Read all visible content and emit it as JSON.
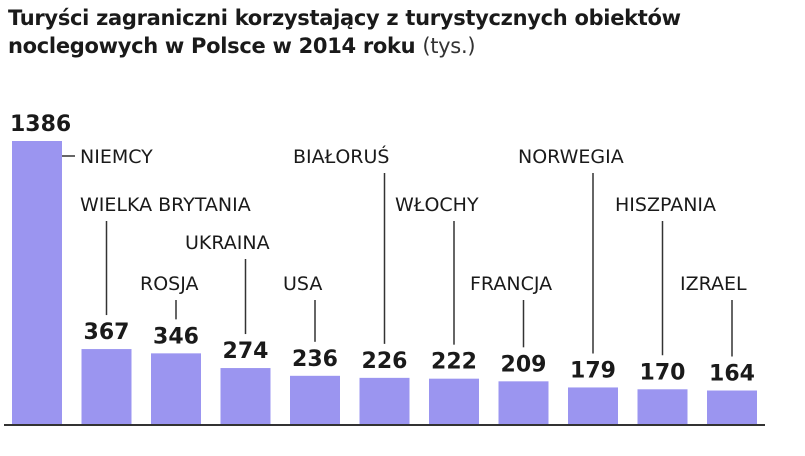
{
  "title": {
    "main": "Turyści zagraniczni korzystający z turystycznych obiektów noclegowych w Polsce w 2014 roku",
    "unit": "(tys.)"
  },
  "colors": {
    "bar": "#9b95f0",
    "axis": "#333333",
    "text": "#1a1a1a"
  },
  "chart_data": {
    "type": "bar",
    "title": "Turyści zagraniczni korzystający z turystycznych obiektów noclegowych w Polsce w 2014 roku (tys.)",
    "categories": [
      "NIEMCY",
      "WIELKA BRYTANIA",
      "ROSJA",
      "UKRAINA",
      "USA",
      "BIAŁORUŚ",
      "WŁOCHY",
      "FRANCJA",
      "NORWEGIA",
      "HISZPANIA",
      "IZRAEL"
    ],
    "values": [
      1386,
      367,
      346,
      274,
      236,
      226,
      222,
      209,
      179,
      170,
      164
    ],
    "xlabel": "",
    "ylabel": "",
    "ylim": [
      0,
      1386
    ],
    "grid": false,
    "legend": "none"
  }
}
